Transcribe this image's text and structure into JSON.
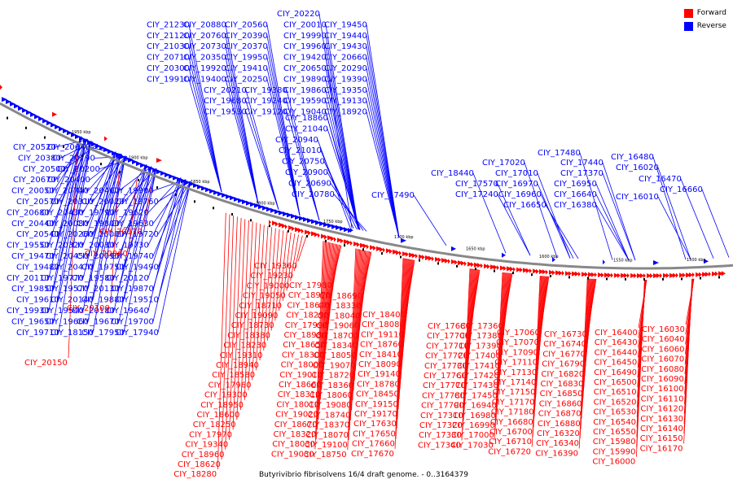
{
  "caption": "Butyrivibrio fibrisolvens 16/4 draft genome. - 0..3164379",
  "legend": [
    {
      "label": "Forward",
      "color": "#ff0000"
    },
    {
      "label": "Reverse",
      "color": "#0000ff"
    }
  ],
  "colors": {
    "forward": "#ff0000",
    "reverse": "#0000ff",
    "backbone": "#808080",
    "marker": "#000000"
  },
  "scale_labels": [
    "1950 kbp",
    "1900 kbp",
    "1850 kbp",
    "1800 kbp",
    "1750 kbp",
    "1700 kbp",
    "1650 kbp",
    "1600 kbp",
    "1550 kbp",
    "1500 kbp"
  ],
  "reverse_labels": [
    "CIY_20220",
    "CIY_21230",
    "CIY_20880",
    "CIY_20560",
    "CIY_20010",
    "CIY_19450",
    "CIY_21120",
    "CIY_20760",
    "CIY_20390",
    "CIY_19990",
    "CIY_19440",
    "CIY_21030",
    "CIY_20730",
    "CIY_20370",
    "CIY_19960",
    "CIY_19430",
    "CIY_20710",
    "CIY_20350",
    "CIY_19950",
    "CIY_19420",
    "CIY_20660",
    "CIY_20300",
    "CIY_19920",
    "CIY_19410",
    "CIY_20650",
    "CIY_20290",
    "CIY_19910",
    "CIY_19400",
    "CIY_20250",
    "CIY_19890",
    "CIY_19390",
    "CIY_20210",
    "CIY_19380",
    "CIY_19860",
    "CIY_19350",
    "CIY_19680",
    "CIY_19240",
    "CIY_19590",
    "CIY_19130",
    "CIY_19530",
    "CIY_19120",
    "CIY_19040",
    "CIY_18920",
    "CIY_18860",
    "CIY_21040",
    "CIY_20940",
    "CIY_21010",
    "CIY_20750",
    "CIY_20900",
    "CIY_20690",
    "CIY_20780",
    "CIY_20520",
    "CIY_20640",
    "CIY_20380",
    "CIY_20790",
    "CIY_20500",
    "CIY_20200",
    "CIY_20670",
    "CIY_20400",
    "CIY_20050",
    "CIY_20740",
    "CIY_20460",
    "CIY_19900",
    "CIY_20570",
    "CIY_20310",
    "CIY_20020",
    "CIY_19760",
    "CIY_20680",
    "CIY_20430",
    "CIY_19790",
    "CIY_19620",
    "CIY_20440",
    "CIY_20080",
    "CIY_19800",
    "CIY_19630",
    "CIY_20540",
    "CIY_20260",
    "CIY_20000",
    "CIY_19720",
    "CIY_19550",
    "CIY_20320",
    "CIY_20030",
    "CIY_19730",
    "CIY_19470",
    "CIY_20450",
    "CIY_20090",
    "CIY_19740",
    "CIY_19480",
    "CIY_20470",
    "CIY_19750",
    "CIY_19490",
    "CIY_20110",
    "CIY_19770",
    "CIY_19580",
    "CIY_20120",
    "CIY_19850",
    "CIY_19570",
    "CIY_20130",
    "CIY_19870",
    "CIY_19610",
    "CIY_20140",
    "CIY_19880",
    "CIY_19510",
    "CIY_19930",
    "CIY_19540",
    "CIY_20180",
    "CIY_19640",
    "CIY_19650",
    "CIY_19660",
    "CIY_19670",
    "CIY_19700",
    "CIY_19710",
    "CIY_18150",
    "CIY_17950",
    "CIY_17940",
    "CIY_18440",
    "CIY_17570",
    "CIY_17240",
    "CIY_17490",
    "CIY_17020",
    "CIY_17480",
    "CIY_17010",
    "CIY_17440",
    "CIY_16970",
    "CIY_17370",
    "CIY_16960",
    "CIY_16950",
    "CIY_16650",
    "CIY_16640",
    "CIY_16380",
    "CIY_16480",
    "CIY_16020",
    "CIY_16470",
    "CIY_16010",
    "CIY_16660"
  ],
  "forward_labels": [
    "CIY_20170",
    "CIY_20060",
    "CIY_20100",
    "CIY_20150",
    "CIY_19360",
    "CIY_19230",
    "CIY_19000",
    "CIY_19050",
    "CIY_18710",
    "CIY_19090",
    "CIY_18730",
    "CIY_18380",
    "CIY_18230",
    "CIY_19310",
    "CIY_18940",
    "CIY_18580",
    "CIY_17960",
    "CIY_19300",
    "CIY_18950",
    "CIY_18600",
    "CIY_18250",
    "CIY_17970",
    "CIY_19340",
    "CIY_18960",
    "CIY_18620",
    "CIY_18280",
    "CIY_17980",
    "CIY_18970",
    "CIY_18640",
    "CIY_18290",
    "CIY_17990",
    "CIY_18980",
    "CIY_18650",
    "CIY_18300",
    "CIY_18000",
    "CIY_19010",
    "CIY_18660",
    "CIY_18310",
    "CIY_18010",
    "CIY_19020",
    "CIY_18670",
    "CIY_18320",
    "CIY_18030",
    "CIY_19030",
    "CIY_18690",
    "CIY_18330",
    "CIY_18040",
    "CIY_19060",
    "CIY_18700",
    "CIY_18340",
    "CIY_18050",
    "CIY_19070",
    "CIY_18720",
    "CIY_18360",
    "CIY_18060",
    "CIY_19080",
    "CIY_18740",
    "CIY_18370",
    "CIY_18070",
    "CIY_19100",
    "CIY_18750",
    "CIY_18400",
    "CIY_18080",
    "CIY_19110",
    "CIY_18760",
    "CIY_18410",
    "CIY_18090",
    "CIY_19140",
    "CIY_18780",
    "CIY_18450",
    "CIY_19150",
    "CIY_19170",
    "CIY_17630",
    "CIY_17650",
    "CIY_17660",
    "CIY_17670",
    "CIY_17680",
    "CIY_17700",
    "CIY_17710",
    "CIY_17720",
    "CIY_17730",
    "CIY_17760",
    "CIY_17770",
    "CIY_17780",
    "CIY_17790",
    "CIY_17310",
    "CIY_17320",
    "CIY_17330",
    "CIY_17340",
    "CIY_17360",
    "CIY_17380",
    "CIY_17390",
    "CIY_17400",
    "CIY_17410",
    "CIY_17420",
    "CIY_17430",
    "CIY_17450",
    "CIY_16940",
    "CIY_16980",
    "CIY_16990",
    "CIY_17000",
    "CIY_17030",
    "CIY_17060",
    "CIY_17070",
    "CIY_17090",
    "CIY_17110",
    "CIY_17130",
    "CIY_17140",
    "CIY_17150",
    "CIY_17170",
    "CIY_17180",
    "CIY_16680",
    "CIY_16700",
    "CIY_16710",
    "CIY_16720",
    "CIY_16730",
    "CIY_16740",
    "CIY_16770",
    "CIY_16790",
    "CIY_16820",
    "CIY_16830",
    "CIY_16850",
    "CIY_16860",
    "CIY_16870",
    "CIY_16880",
    "CIY_16320",
    "CIY_16340",
    "CIY_16390",
    "CIY_16400",
    "CIY_16430",
    "CIY_16440",
    "CIY_16450",
    "CIY_16490",
    "CIY_16500",
    "CIY_16510",
    "CIY_16520",
    "CIY_16530",
    "CIY_16540",
    "CIY_16550",
    "CIY_15980",
    "CIY_15990",
    "CIY_16000",
    "CIY_16030",
    "CIY_16040",
    "CIY_16060",
    "CIY_16070",
    "CIY_16080",
    "CIY_16090",
    "CIY_16100",
    "CIY_16110",
    "CIY_16120",
    "CIY_16130",
    "CIY_16140",
    "CIY_16150",
    "CIY_16170"
  ]
}
